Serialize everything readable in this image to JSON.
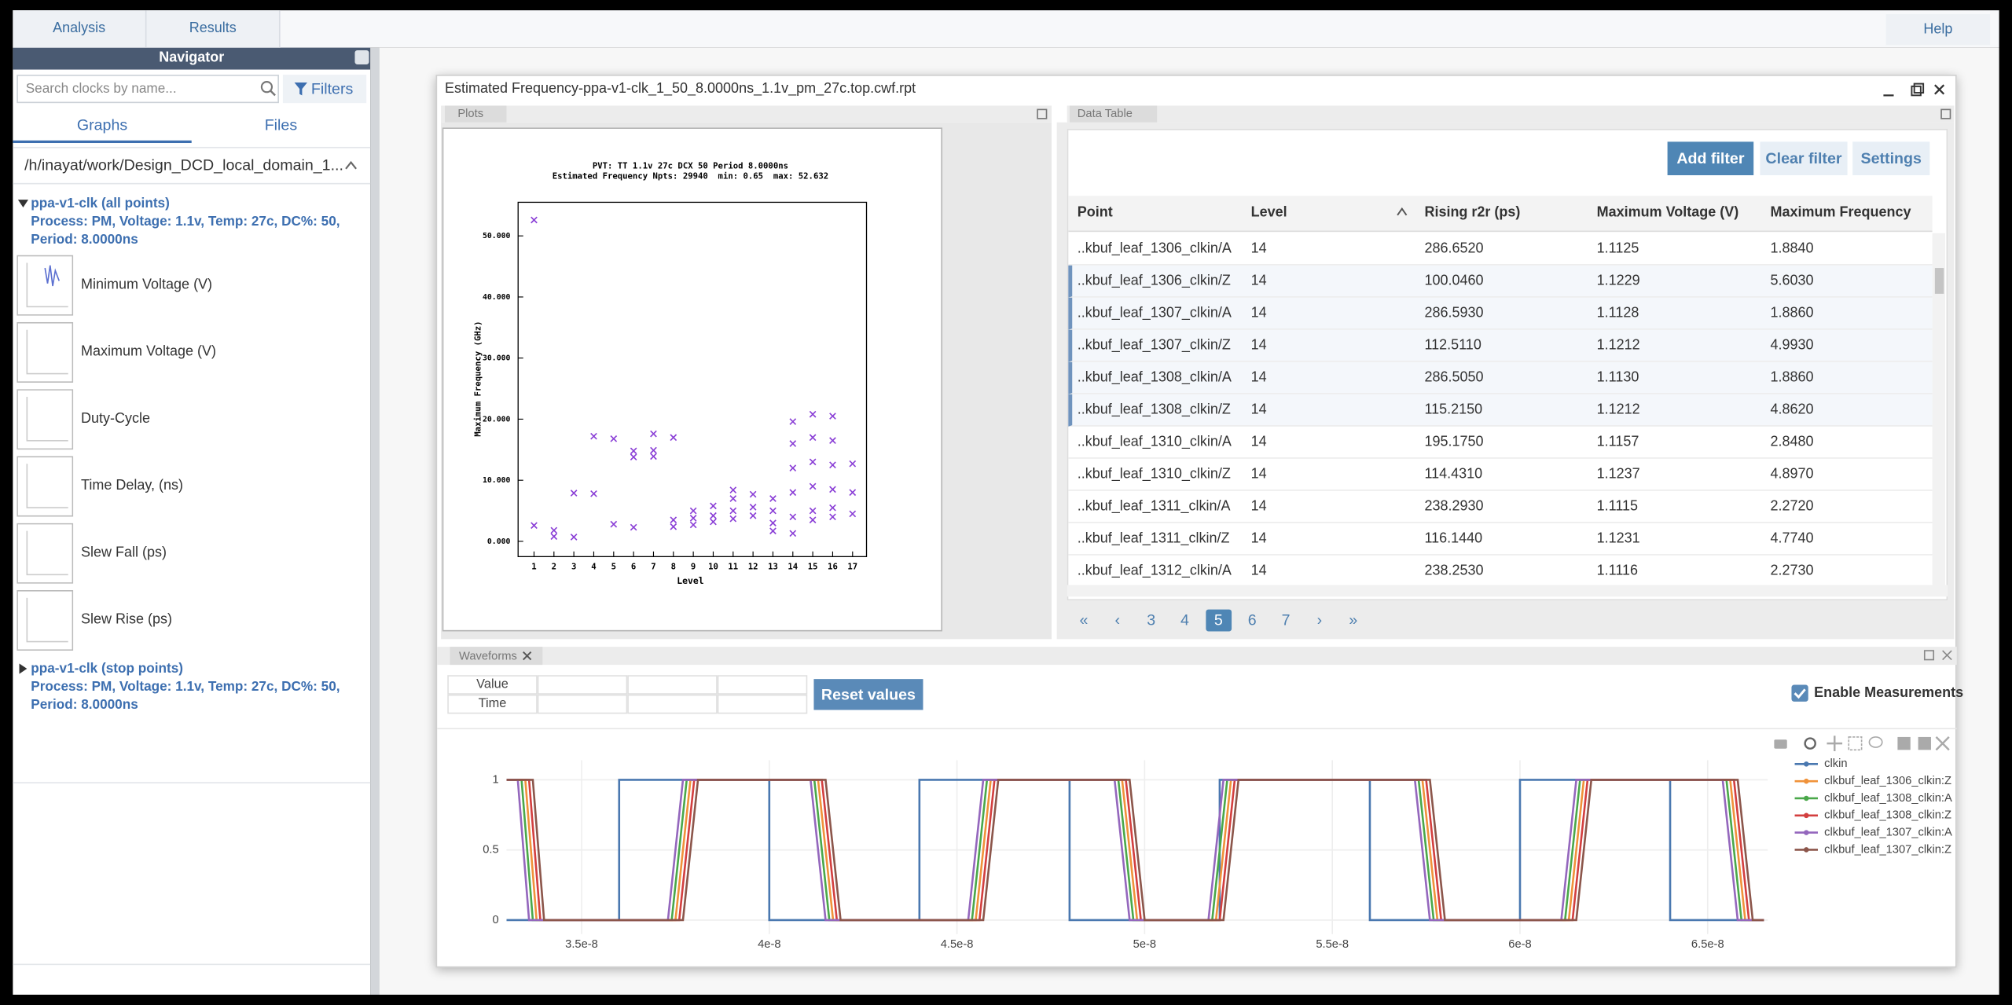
{
  "top_tabs": [
    "Analysis",
    "Results"
  ],
  "help": "Help",
  "navigator": {
    "title": "Navigator",
    "search_placeholder": "Search clocks by name...",
    "filters": "Filters",
    "tabs": [
      "Graphs",
      "Files"
    ],
    "path": "/h/inayat/work/Design_DCD_local_domain_1...",
    "groups": [
      {
        "title": "ppa-v1-clk (all points)",
        "details": "Process: PM, Voltage: 1.1v, Temp: 27c, DC%: 50, Period: 8.0000ns",
        "graphs": [
          "Minimum Voltage (V)",
          "Maximum Voltage (V)",
          "Duty-Cycle",
          "Time Delay, (ns)",
          "Slew Fall (ps)",
          "Slew Rise (ps)"
        ]
      },
      {
        "title": "ppa-v1-clk (stop points)",
        "details": "Process: PM, Voltage: 1.1v, Temp: 27c, DC%: 50, Period: 8.0000ns"
      }
    ]
  },
  "window": {
    "title": "Estimated Frequency-ppa-v1-clk_1_50_8.0000ns_1.1v_pm_27c.top.cwf.rpt"
  },
  "plots": {
    "tab": "Plots",
    "chart_data": {
      "type": "scatter",
      "title": "PVT: TT 1.1v 27c DCX 50 Period 8.0000ns",
      "subtitle": "Estimated Frequency Npts: 29940  min: 0.65  max: 52.632",
      "xlabel": "Level",
      "ylabel": "Maximum Frequency (GHz)",
      "color": "#8a3fd6",
      "x": [
        1,
        1,
        2,
        2,
        3,
        3,
        4,
        4,
        5,
        5,
        6,
        6,
        6,
        7,
        7,
        7,
        8,
        8,
        8,
        9,
        9,
        9,
        10,
        10,
        10,
        11,
        11,
        11,
        11,
        12,
        12,
        12,
        13,
        13,
        13,
        13,
        14,
        14,
        14,
        14,
        14,
        14,
        15,
        15,
        15,
        15,
        15,
        15,
        16,
        16,
        16,
        16,
        16,
        16,
        17,
        17,
        17
      ],
      "values": [
        52.6,
        2.6,
        1.8,
        0.8,
        7.9,
        0.7,
        17.2,
        7.8,
        16.8,
        2.8,
        14.8,
        13.8,
        2.3,
        17.6,
        14.9,
        13.9,
        17.0,
        3.5,
        2.4,
        5.0,
        3.8,
        2.7,
        5.8,
        4.2,
        3.2,
        8.4,
        7.0,
        5.0,
        3.7,
        7.7,
        5.6,
        4.2,
        7.0,
        5.0,
        3.0,
        1.7,
        19.6,
        16,
        12,
        8,
        4,
        1.3,
        20.8,
        17,
        13,
        9,
        5,
        3.5,
        20.5,
        16.5,
        12.5,
        8.5,
        5.5,
        4.0,
        12.7,
        8.0,
        4.5
      ],
      "xlim": [
        0.2,
        17.7
      ],
      "ylim": [
        -2.5,
        55.5
      ],
      "xticks": [
        1,
        2,
        3,
        4,
        5,
        6,
        7,
        8,
        9,
        10,
        11,
        12,
        13,
        14,
        15,
        16,
        17
      ],
      "yticks": [
        {
          "value": 0,
          "label": "0.000"
        },
        {
          "value": 10,
          "label": "10.000"
        },
        {
          "value": 20,
          "label": "20.000"
        },
        {
          "value": 30,
          "label": "30.000"
        },
        {
          "value": 40,
          "label": "40.000"
        },
        {
          "value": 50,
          "label": "50.000"
        }
      ]
    }
  },
  "data_table": {
    "tab": "Data Table",
    "buttons": [
      "Add filter",
      "Clear filter",
      "Settings"
    ],
    "columns": [
      "Point",
      "Level",
      "Rising r2r (ps)",
      "Maximum Voltage (V)",
      "Maximum Frequency"
    ],
    "rows": [
      [
        "..kbuf_leaf_1306_clkin/A",
        "14",
        "286.6520",
        "1.1125",
        "1.8840"
      ],
      [
        "..kbuf_leaf_1306_clkin/Z",
        "14",
        "100.0460",
        "1.1229",
        "5.6030"
      ],
      [
        "..kbuf_leaf_1307_clkin/A",
        "14",
        "286.5930",
        "1.1128",
        "1.8860"
      ],
      [
        "..kbuf_leaf_1307_clkin/Z",
        "14",
        "112.5110",
        "1.1212",
        "4.9930"
      ],
      [
        "..kbuf_leaf_1308_clkin/A",
        "14",
        "286.5050",
        "1.1130",
        "1.8860"
      ],
      [
        "..kbuf_leaf_1308_clkin/Z",
        "14",
        "115.2150",
        "1.1212",
        "4.8620"
      ],
      [
        "..kbuf_leaf_1310_clkin/A",
        "14",
        "195.1750",
        "1.1157",
        "2.8480"
      ],
      [
        "..kbuf_leaf_1310_clkin/Z",
        "14",
        "114.4310",
        "1.1237",
        "4.8970"
      ],
      [
        "..kbuf_leaf_1311_clkin/A",
        "14",
        "238.2930",
        "1.1115",
        "2.2720"
      ],
      [
        "..kbuf_leaf_1311_clkin/Z",
        "14",
        "116.1440",
        "1.1231",
        "4.7740"
      ],
      [
        "..kbuf_leaf_1312_clkin/A",
        "14",
        "238.2530",
        "1.1116",
        "2.2730"
      ]
    ],
    "selected_rows": [
      1,
      2,
      3,
      4,
      5
    ],
    "pages": [
      "«",
      "‹",
      "3",
      "4",
      "5",
      "6",
      "7",
      "›",
      "»"
    ],
    "active_page": 4
  },
  "waveforms": {
    "tab": "Waveforms",
    "measure_rows": [
      "Value",
      "Time"
    ],
    "reset": "Reset values",
    "enable_measurements": "Enable Measurements",
    "chart_data": {
      "type": "line",
      "xlim": [
        3.3e-08,
        6.66e-08
      ],
      "ylim": [
        -0.1,
        1.14
      ],
      "xticks": [
        3.5e-08,
        4e-08,
        4.5e-08,
        5e-08,
        5.5e-08,
        6e-08,
        6.5e-08
      ],
      "yticks": [
        0,
        0.5,
        1
      ],
      "grid": true,
      "legend": "right",
      "series": [
        {
          "name": "clkin",
          "color": "#4a78b0",
          "x": [
            3.3e-08,
            3.6e-08,
            3.6e-08,
            4e-08,
            4e-08,
            4.4e-08,
            4.4e-08,
            4.8e-08,
            4.8e-08,
            5.2e-08,
            5.2e-08,
            5.6e-08,
            5.6e-08,
            6e-08,
            6e-08,
            6.4e-08,
            6.4e-08,
            6.65e-08
          ],
          "values": [
            0,
            0,
            1,
            1,
            0,
            0,
            1,
            1,
            0,
            0,
            1,
            1,
            0,
            0,
            1,
            1,
            0,
            0
          ]
        },
        {
          "name": "clkbuf_leaf_1306_clkin:Z",
          "color": "#f0923a",
          "x": [
            3.3e-08,
            3.35e-08,
            3.38e-08,
            3.75e-08,
            3.79e-08,
            4.13e-08,
            4.17e-08,
            4.55e-08,
            4.59e-08,
            4.94e-08,
            4.98e-08,
            5.19e-08,
            5.23e-08,
            5.74e-08,
            5.78e-08,
            6.13e-08,
            6.17e-08,
            6.56e-08,
            6.6e-08,
            6.65e-08
          ],
          "values": [
            1,
            1,
            0,
            0,
            1,
            1,
            0,
            0,
            1,
            1,
            0,
            0,
            1,
            1,
            0,
            0,
            1,
            1,
            0,
            0
          ]
        },
        {
          "name": "clkbuf_leaf_1308_clkin:A",
          "color": "#4aa84a",
          "x": [
            3.3e-08,
            3.34e-08,
            3.37e-08,
            3.74e-08,
            3.78e-08,
            4.12e-08,
            4.16e-08,
            4.54e-08,
            4.58e-08,
            4.93e-08,
            4.97e-08,
            5.18e-08,
            5.22e-08,
            5.73e-08,
            5.77e-08,
            6.12e-08,
            6.16e-08,
            6.55e-08,
            6.59e-08,
            6.65e-08
          ],
          "values": [
            1,
            1,
            0,
            0,
            1,
            1,
            0,
            0,
            1,
            1,
            0,
            0,
            1,
            1,
            0,
            0,
            1,
            1,
            0,
            0
          ]
        },
        {
          "name": "clkbuf_leaf_1308_clkin:Z",
          "color": "#d33f3f",
          "x": [
            3.3e-08,
            3.36e-08,
            3.39e-08,
            3.76e-08,
            3.8e-08,
            4.14e-08,
            4.18e-08,
            4.56e-08,
            4.6e-08,
            4.95e-08,
            4.99e-08,
            5.2e-08,
            5.24e-08,
            5.75e-08,
            5.79e-08,
            6.14e-08,
            6.18e-08,
            6.57e-08,
            6.61e-08,
            6.65e-08
          ],
          "values": [
            1,
            1,
            0,
            0,
            1,
            1,
            0,
            0,
            1,
            1,
            0,
            0,
            1,
            1,
            0,
            0,
            1,
            1,
            0,
            0
          ]
        },
        {
          "name": "clkbuf_leaf_1307_clkin:A",
          "color": "#9467bd",
          "x": [
            3.3e-08,
            3.33e-08,
            3.36e-08,
            3.73e-08,
            3.77e-08,
            4.11e-08,
            4.15e-08,
            4.53e-08,
            4.57e-08,
            4.92e-08,
            4.96e-08,
            5.17e-08,
            5.21e-08,
            5.72e-08,
            5.76e-08,
            6.11e-08,
            6.15e-08,
            6.54e-08,
            6.58e-08,
            6.65e-08
          ],
          "values": [
            1,
            1,
            0,
            0,
            1,
            1,
            0,
            0,
            1,
            1,
            0,
            0,
            1,
            1,
            0,
            0,
            1,
            1,
            0,
            0
          ]
        },
        {
          "name": "clkbuf_leaf_1307_clkin:Z",
          "color": "#8c564b",
          "x": [
            3.3e-08,
            3.37e-08,
            3.4e-08,
            3.77e-08,
            3.81e-08,
            4.15e-08,
            4.19e-08,
            4.57e-08,
            4.61e-08,
            4.96e-08,
            5e-08,
            5.21e-08,
            5.25e-08,
            5.76e-08,
            5.8e-08,
            6.15e-08,
            6.19e-08,
            6.58e-08,
            6.62e-08,
            6.65e-08
          ],
          "values": [
            1,
            1,
            0,
            0,
            1,
            1,
            0,
            0,
            1,
            1,
            0,
            0,
            1,
            1,
            0,
            0,
            1,
            1,
            0,
            0
          ]
        }
      ]
    }
  }
}
